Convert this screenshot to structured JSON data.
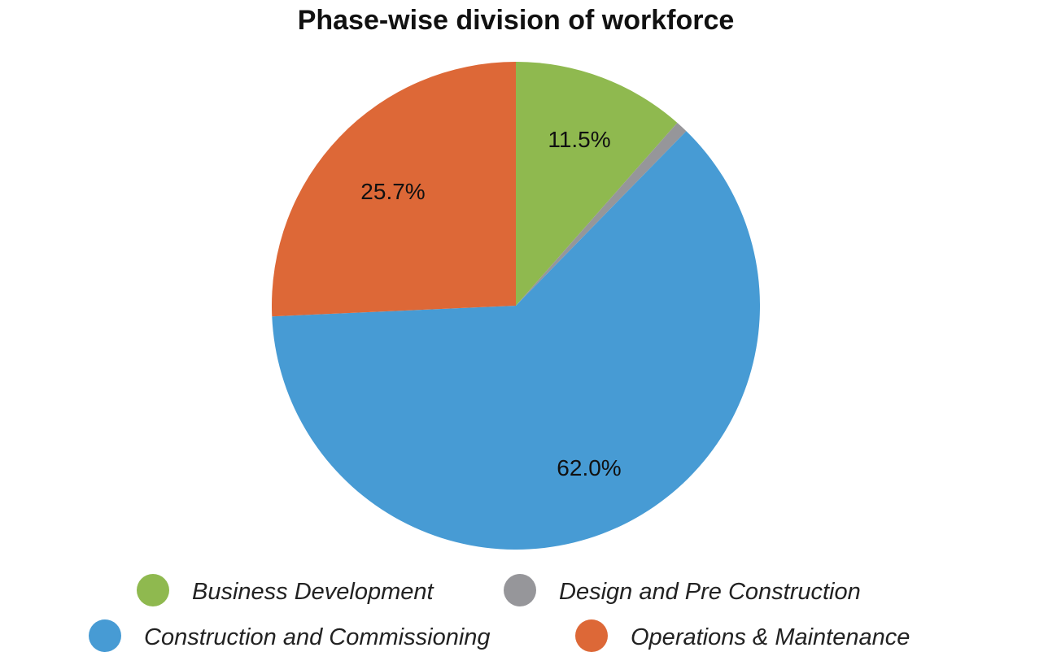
{
  "chart_data": {
    "type": "pie",
    "title": "Phase-wise division of workforce",
    "slices": [
      {
        "name": "Business Development",
        "value": 11.5,
        "label": "11.5%",
        "color": "#8FB94F"
      },
      {
        "name": "Design and Pre Construction",
        "value": 0.8,
        "label": "",
        "color": "#96969A"
      },
      {
        "name": "Construction and Commissioning",
        "value": 62.0,
        "label": "62.0%",
        "color": "#479BD4"
      },
      {
        "name": "Operations & Maintenance",
        "value": 25.7,
        "label": "25.7%",
        "color": "#DD6837"
      }
    ],
    "start_angle": "12 o'clock",
    "direction": "clockwise",
    "legend_position": "bottom"
  }
}
